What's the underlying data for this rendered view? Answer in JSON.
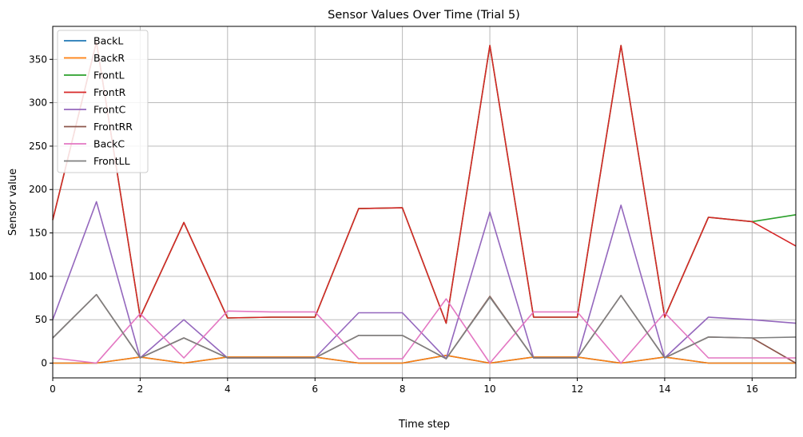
{
  "chart_data": {
    "type": "line",
    "title": "Sensor Values Over Time (Trial 5)",
    "xlabel": "Time step",
    "ylabel": "Sensor value",
    "xlim": [
      0,
      17
    ],
    "ylim": [
      -17,
      388
    ],
    "xticks": [
      0,
      2,
      4,
      6,
      8,
      10,
      12,
      14,
      16
    ],
    "yticks": [
      0,
      50,
      100,
      150,
      200,
      250,
      300,
      350
    ],
    "grid": true,
    "legend_position": "top-left",
    "x": [
      0,
      1,
      2,
      3,
      4,
      5,
      6,
      7,
      8,
      9,
      10,
      11,
      12,
      13,
      14,
      15,
      16,
      17
    ],
    "series": [
      {
        "name": "BackL",
        "color": "#1f77b4",
        "values": [
          0,
          0,
          7,
          0,
          7,
          7,
          7,
          0,
          0,
          9,
          0,
          7,
          7,
          0,
          7,
          0,
          0,
          0
        ]
      },
      {
        "name": "BackR",
        "color": "#ff7f0e",
        "values": [
          0,
          0,
          7,
          0,
          7,
          7,
          7,
          0,
          0,
          9,
          0,
          7,
          7,
          0,
          7,
          0,
          0,
          0
        ]
      },
      {
        "name": "FrontL",
        "color": "#2ca02c",
        "values": [
          165,
          370,
          53,
          162,
          52,
          53,
          53,
          178,
          179,
          46,
          366,
          53,
          53,
          366,
          53,
          168,
          163,
          171
        ]
      },
      {
        "name": "FrontR",
        "color": "#d62728",
        "values": [
          165,
          370,
          53,
          162,
          52,
          53,
          53,
          178,
          179,
          46,
          366,
          53,
          53,
          366,
          53,
          168,
          163,
          135
        ]
      },
      {
        "name": "FrontC",
        "color": "#9467bd",
        "values": [
          50,
          186,
          6,
          50,
          6,
          6,
          6,
          58,
          58,
          5,
          174,
          6,
          6,
          182,
          6,
          53,
          50,
          46
        ]
      },
      {
        "name": "FrontRR",
        "color": "#8c564b",
        "values": [
          29,
          79,
          6,
          29,
          6,
          6,
          6,
          32,
          32,
          5,
          77,
          6,
          6,
          78,
          6,
          30,
          29,
          0
        ]
      },
      {
        "name": "BackC",
        "color": "#e377c2",
        "values": [
          6,
          0,
          57,
          6,
          60,
          59,
          59,
          5,
          5,
          74,
          0,
          59,
          59,
          0,
          58,
          6,
          6,
          6
        ]
      },
      {
        "name": "FrontLL",
        "color": "#7f7f7f",
        "values": [
          29,
          79,
          6,
          29,
          6,
          6,
          6,
          32,
          32,
          5,
          76,
          6,
          6,
          78,
          6,
          30,
          29,
          30
        ]
      }
    ]
  }
}
